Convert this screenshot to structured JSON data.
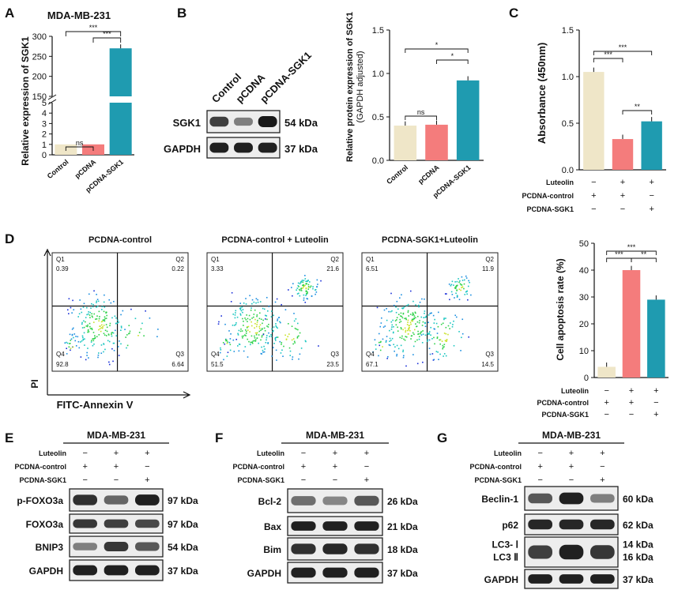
{
  "colors": {
    "cream": "#EFE6C8",
    "salmon": "#F47C7C",
    "teal": "#1F9BB0",
    "err": "#E05555"
  },
  "panelA": {
    "letter": "A",
    "title": "MDA-MB-231",
    "ylabel": "Relative  expression of SGK1",
    "chart_data": {
      "type": "bar",
      "categories": [
        "Control",
        "pCDNA",
        "pCDNA-SGK1"
      ],
      "values": [
        1,
        1,
        270
      ],
      "ylim": [
        0,
        300
      ],
      "axis_break": [
        5,
        150
      ],
      "ticks_lower": [
        "0",
        "1",
        "2",
        "3",
        "4",
        "5"
      ],
      "ticks_upper": [
        "150",
        "200",
        "250",
        "300"
      ],
      "sig": [
        {
          "label": "ns"
        },
        {
          "label": "***"
        },
        {
          "label": "***"
        }
      ]
    }
  },
  "panelB": {
    "letter": "B",
    "lanes": [
      "Control",
      "pCDNA",
      "pCDNA-SGK1"
    ],
    "rows": [
      {
        "name": "SGK1",
        "kda": "54 kDa"
      },
      {
        "name": "GAPDH",
        "kda": "37 kDa"
      }
    ],
    "ylabel": "Relative protein expression of SGK1",
    "ylabel2": "(GAPDH adjusted)",
    "chart_data": {
      "type": "bar",
      "categories": [
        "Control",
        "pCDNA",
        "pCDNA-SGK1"
      ],
      "values": [
        0.4,
        0.41,
        0.92
      ],
      "ylim": [
        0,
        1.5
      ],
      "ticks": [
        "0.0",
        "0.5",
        "1.0",
        "1.5"
      ],
      "sig": [
        {
          "label": "ns"
        },
        {
          "label": "*"
        },
        {
          "label": "*"
        }
      ]
    }
  },
  "panelC": {
    "letter": "C",
    "ylabel": "Absorbance (450nm)",
    "chart_data": {
      "type": "bar",
      "values": [
        1.05,
        0.33,
        0.52
      ],
      "ylim": [
        0,
        1.5
      ],
      "ticks": [
        "0.0",
        "0.5",
        "1.0",
        "1.5"
      ],
      "sig": [
        {
          "label": "***"
        },
        {
          "label": "***"
        },
        {
          "label": "**"
        }
      ]
    }
  },
  "treat": {
    "rows": [
      "Luteolin",
      "PCDNA-control",
      "PCDNA-SGK1"
    ],
    "signs": [
      [
        "−",
        "+",
        "+"
      ],
      [
        "+",
        "+",
        "−"
      ],
      [
        "−",
        "−",
        "+"
      ]
    ]
  },
  "panelD": {
    "letter": "D",
    "xlabel": "FITC-Annexin V",
    "ylabel": "PI",
    "plots": [
      {
        "title": "PCDNA-control",
        "q1": "0.39",
        "q2": "0.22",
        "q3": "6.64",
        "q4": "92.8"
      },
      {
        "title": "PCDNA-control + Luteolin",
        "q1": "3.33",
        "q2": "21.6",
        "q3": "23.5",
        "q4": "51.5"
      },
      {
        "title": "PCDNA-SGK1+Luteolin",
        "q1": "6.51",
        "q2": "11.9",
        "q3": "14.5",
        "q4": "67.1"
      }
    ],
    "qlabels": [
      "Q1",
      "Q2",
      "Q3",
      "Q4"
    ],
    "bar_ylabel": "Cell apoptosis rate (%)",
    "chart_data": {
      "type": "bar",
      "values": [
        4,
        40,
        29
      ],
      "ylim": [
        0,
        50
      ],
      "ticks": [
        "0",
        "10",
        "20",
        "30",
        "40",
        "50"
      ],
      "sig": [
        {
          "label": "***"
        },
        {
          "label": "**"
        },
        {
          "label": "***"
        }
      ]
    }
  },
  "panelE": {
    "letter": "E",
    "title": "MDA-MB-231",
    "rows": [
      {
        "name": "p-FOXO3a",
        "kda": "97 kDa"
      },
      {
        "name": "FOXO3a",
        "kda": "97 kDa"
      },
      {
        "name": "BNIP3",
        "kda": "54 kDa"
      },
      {
        "name": "GAPDH",
        "kda": "37 kDa"
      }
    ]
  },
  "panelF": {
    "letter": "F",
    "title": "MDA-MB-231",
    "rows": [
      {
        "name": "Bcl-2",
        "kda": "26 kDa"
      },
      {
        "name": "Bax",
        "kda": "21 kDa"
      },
      {
        "name": "Bim",
        "kda": "18 kDa"
      },
      {
        "name": "GAPDH",
        "kda": "37 kDa"
      }
    ]
  },
  "panelG": {
    "letter": "G",
    "title": "MDA-MB-231",
    "rows": [
      {
        "name": "Beclin-1",
        "kda": "60 kDa"
      },
      {
        "name": "p62",
        "kda": "62 kDa"
      },
      {
        "name": "LC3- Ⅰ",
        "kda": "14 kDa"
      },
      {
        "name": "LC3 Ⅱ",
        "kda": "16 kDa"
      },
      {
        "name": "GAPDH",
        "kda": "37 kDa"
      }
    ]
  }
}
